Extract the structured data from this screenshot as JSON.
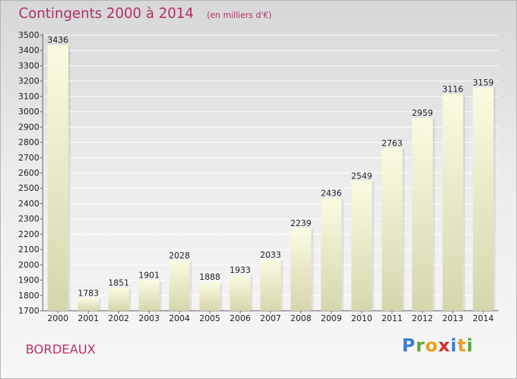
{
  "header": {
    "title": "Contingents 2000 à 2014",
    "subtitle": "(en milliers d'€)"
  },
  "footer": {
    "city": "BORDEAUX",
    "logo_text": "Proxiti"
  },
  "colors": {
    "title": "#b0306a",
    "bar_top": "#fbfbe2",
    "bar_bottom": "#d6d6ad",
    "grid": "#ffffff"
  },
  "chart_data": {
    "type": "bar",
    "title": "Contingents 2000 à 2014",
    "subtitle": "(en milliers d'€)",
    "xlabel": "",
    "ylabel": "",
    "categories": [
      "2000",
      "2001",
      "2002",
      "2003",
      "2004",
      "2005",
      "2006",
      "2007",
      "2008",
      "2009",
      "2010",
      "2011",
      "2012",
      "2013",
      "2014"
    ],
    "values": [
      3436,
      1783,
      1851,
      1901,
      2028,
      1888,
      1933,
      2033,
      2239,
      2436,
      2549,
      2763,
      2959,
      3116,
      3159
    ],
    "ylim": [
      1700,
      3500
    ],
    "ytick_step": 100,
    "grid": true,
    "legend": "none"
  }
}
